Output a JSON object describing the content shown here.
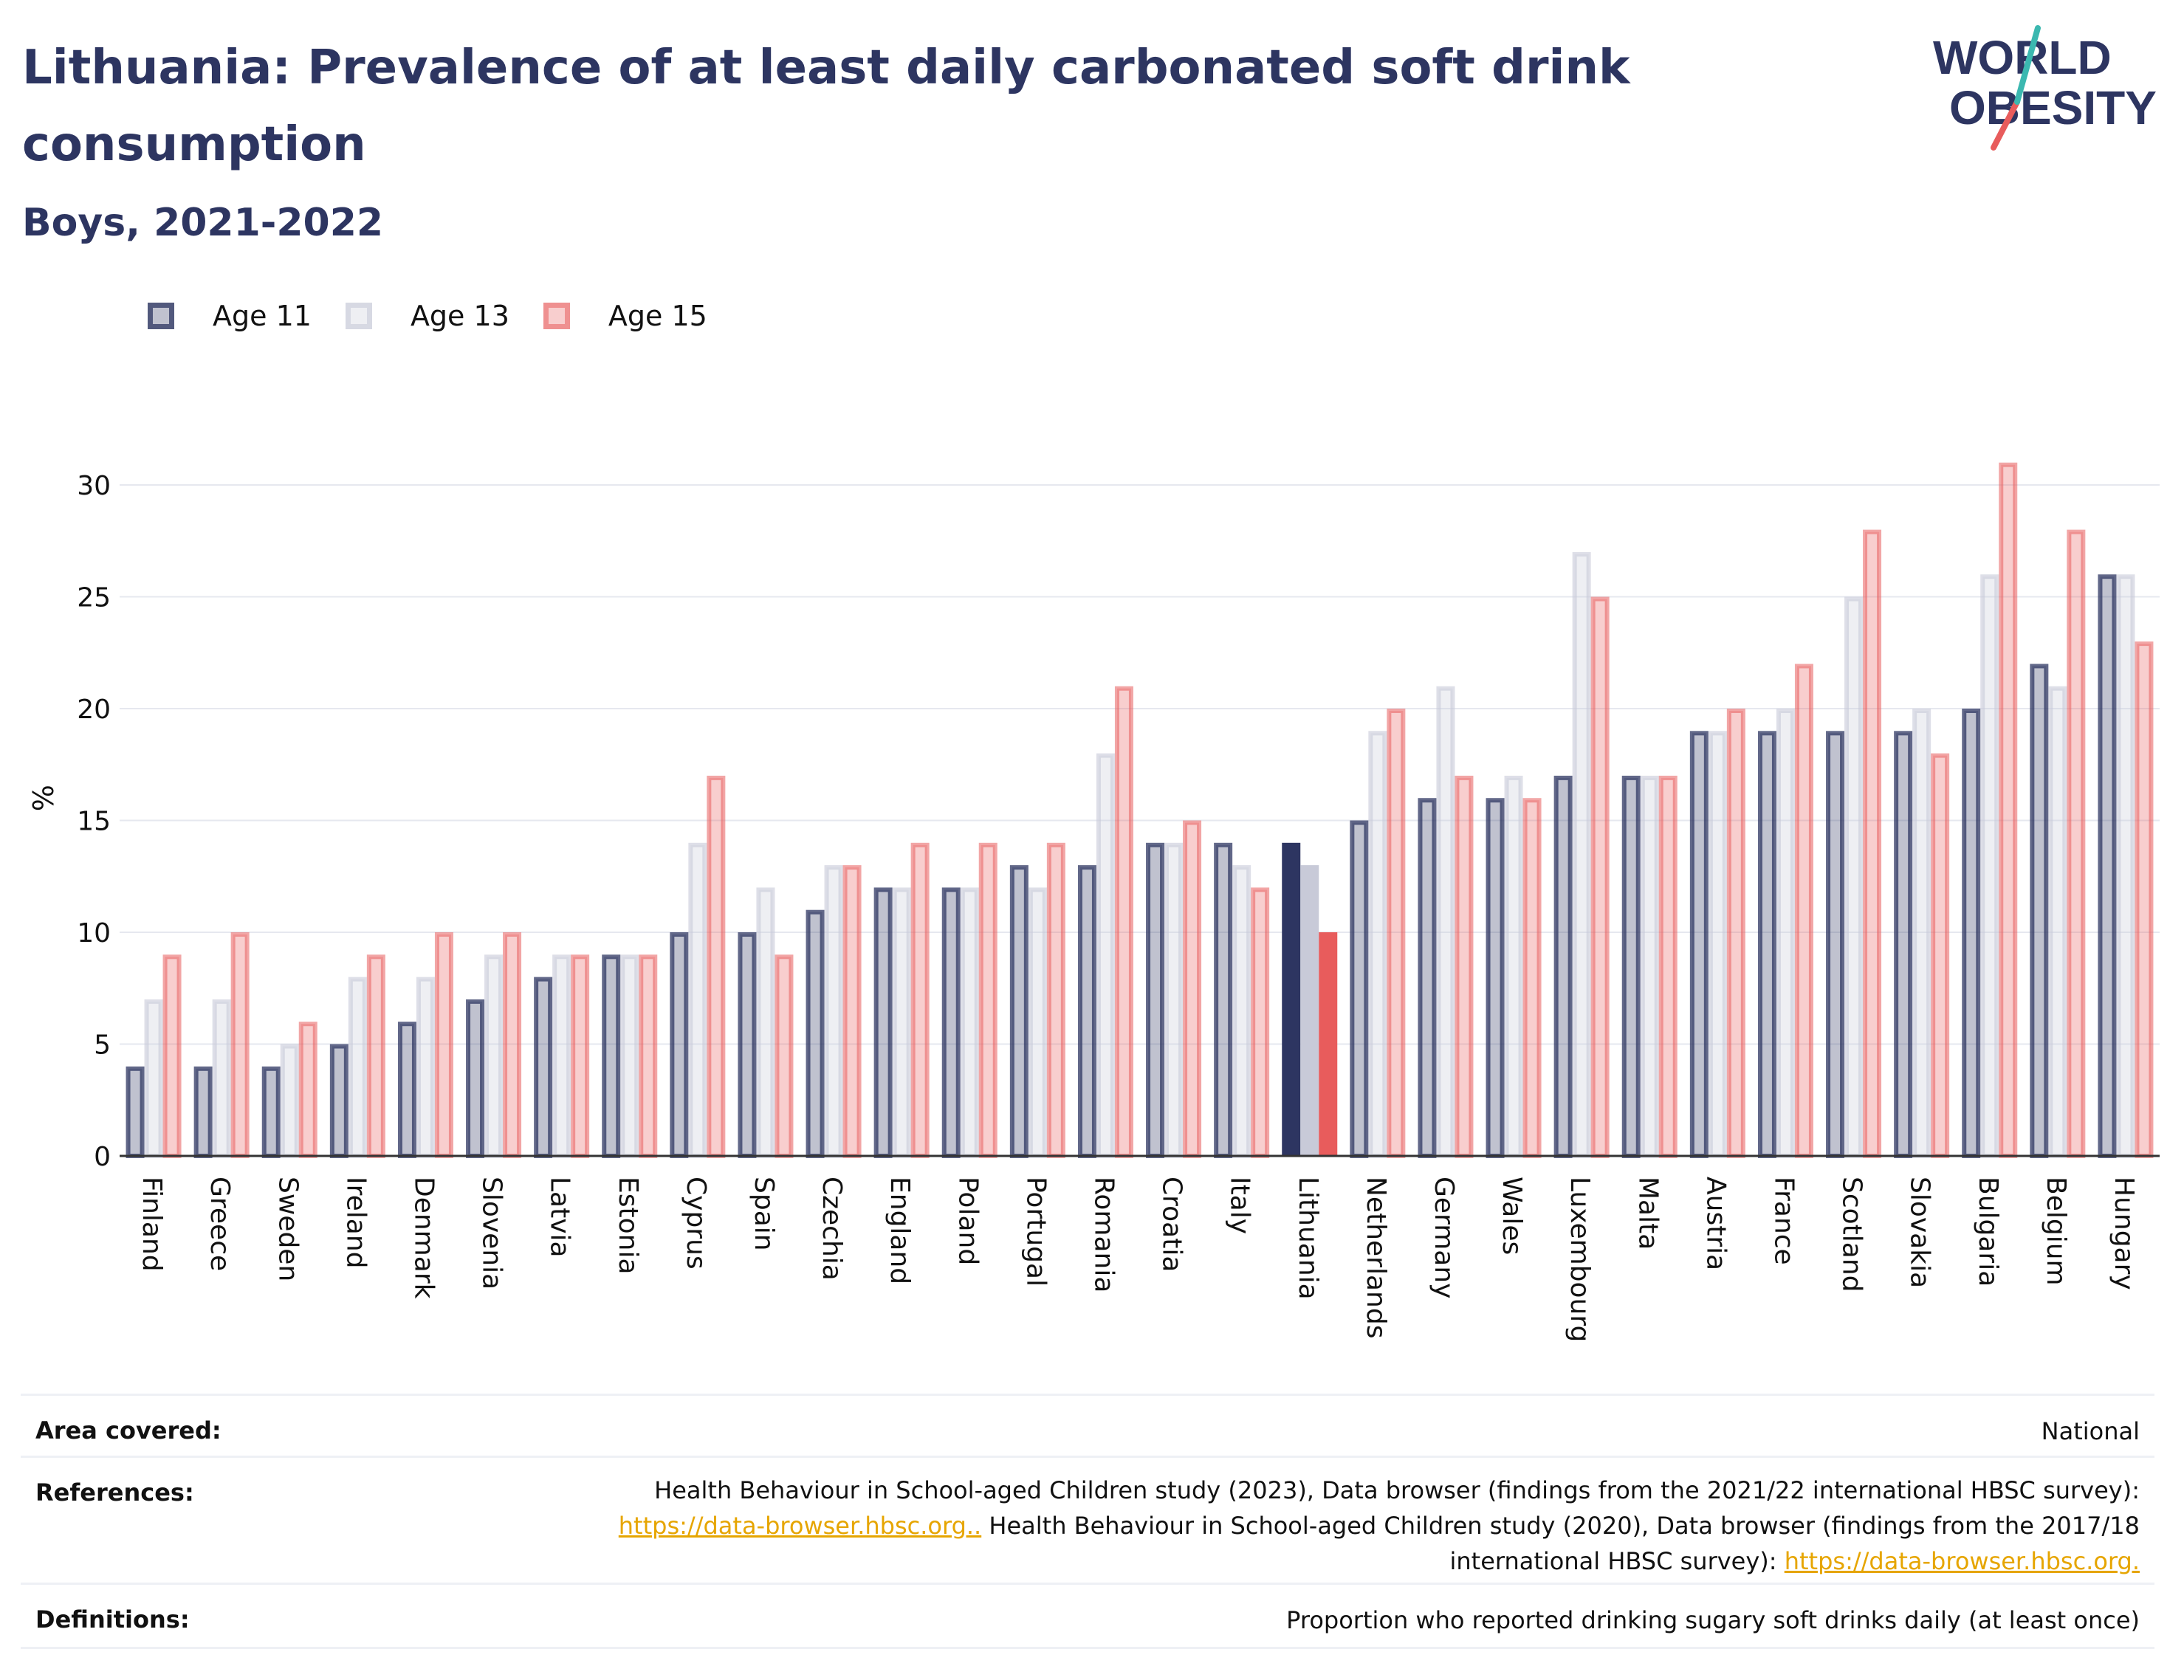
{
  "title": "Lithuania: Prevalence of at least daily carbonated soft drink consumption",
  "subtitle": "Boys, 2021-2022",
  "logo": {
    "line1": "WORLD",
    "line2": "OBESITY"
  },
  "colors": {
    "age11": "#2d3561",
    "age13": "#c8cad8",
    "age15": "#e85c5c",
    "text": "#2d3561"
  },
  "legend": [
    {
      "label": "Age 11",
      "color": "#2d3561"
    },
    {
      "label": "Age 13",
      "color": "#c8cad8"
    },
    {
      "label": "Age 15",
      "color": "#e85c5c"
    }
  ],
  "chart_data": {
    "type": "bar",
    "ylabel": "%",
    "ylim": [
      0,
      32
    ],
    "yticks": [
      0,
      5,
      10,
      15,
      20,
      25,
      30
    ],
    "highlight": "Lithuania",
    "categories": [
      "Finland",
      "Greece",
      "Sweden",
      "Ireland",
      "Denmark",
      "Slovenia",
      "Latvia",
      "Estonia",
      "Cyprus",
      "Spain",
      "Czechia",
      "England",
      "Poland",
      "Portugal",
      "Romania",
      "Croatia",
      "Italy",
      "Lithuania",
      "Netherlands",
      "Germany",
      "Wales",
      "Luxembourg",
      "Malta",
      "Austria",
      "France",
      "Scotland",
      "Slovakia",
      "Bulgaria",
      "Belgium",
      "Hungary"
    ],
    "series": [
      {
        "name": "Age 11",
        "values": [
          4,
          4,
          4,
          5,
          6,
          7,
          8,
          9,
          10,
          10,
          11,
          12,
          12,
          13,
          13,
          14,
          14,
          14,
          15,
          16,
          16,
          17,
          17,
          19,
          19,
          19,
          19,
          20,
          22,
          26
        ]
      },
      {
        "name": "Age 13",
        "values": [
          7,
          7,
          5,
          8,
          8,
          9,
          9,
          9,
          14,
          12,
          13,
          12,
          12,
          12,
          18,
          14,
          13,
          13,
          19,
          21,
          17,
          27,
          17,
          19,
          20,
          25,
          20,
          26,
          21,
          26
        ]
      },
      {
        "name": "Age 15",
        "values": [
          9,
          10,
          6,
          9,
          10,
          10,
          9,
          9,
          17,
          9,
          13,
          14,
          14,
          14,
          21,
          15,
          12,
          10,
          20,
          17,
          16,
          25,
          17,
          20,
          22,
          28,
          18,
          31,
          28,
          23
        ]
      }
    ]
  },
  "footer": {
    "area_label": "Area covered:",
    "area_value": "National",
    "references_label": "References:",
    "ref_text1": "Health Behaviour in School-aged Children study (2023), Data browser (findings from the 2021/22 international HBSC survey):",
    "ref_link1": "https://data-browser.hbsc.org..",
    "ref_text2": " Health Behaviour in School-aged Children study (2020), Data browser (findings from the 2017/18",
    "ref_text3": "international HBSC survey): ",
    "ref_link2": "https://data-browser.hbsc.org.",
    "definitions_label": "Definitions:",
    "definitions_value": "Proportion who reported drinking sugary soft drinks daily (at least once)"
  }
}
